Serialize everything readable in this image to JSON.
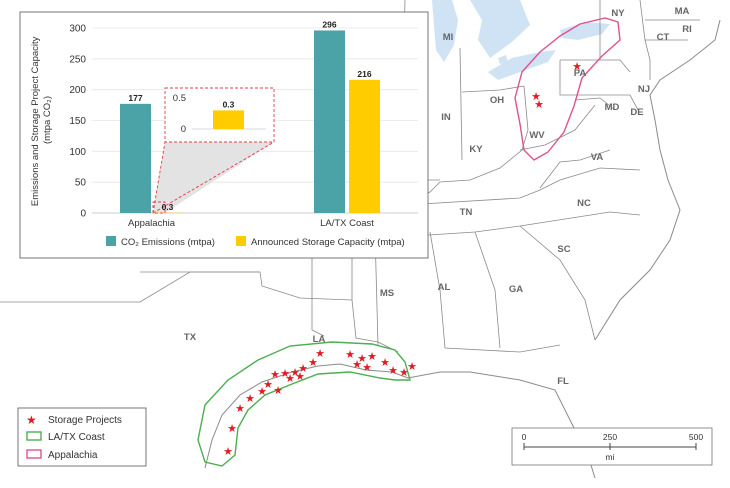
{
  "map": {
    "state_labels": [
      "NY",
      "MA",
      "CT",
      "RI",
      "MI",
      "PA",
      "NJ",
      "MD",
      "DE",
      "OH",
      "IN",
      "WV",
      "VA",
      "KY",
      "TN",
      "NC",
      "SC",
      "GA",
      "AL",
      "MS",
      "LA",
      "TX",
      "FL"
    ],
    "colors": {
      "water": "#cfe3f5",
      "border": "#8a8a8a",
      "la_tx_coast": "#4caf50",
      "appalachia": "#e0528f",
      "star": "#e21b23"
    }
  },
  "legend": {
    "items": [
      {
        "label": "Storage Projects",
        "symbol": "star-icon"
      },
      {
        "label": "LA/TX Coast",
        "symbol": "green-outline-box"
      },
      {
        "label": "Appalachia",
        "symbol": "pink-outline-box"
      }
    ]
  },
  "scale": {
    "ticks": [
      "0",
      "250",
      "500"
    ],
    "unit": "mi"
  },
  "chart_data": {
    "type": "bar",
    "categories": [
      "Appalachia",
      "LA/TX Coast"
    ],
    "series": [
      {
        "name": "CO₂ Emissions (mtpa)",
        "values": [
          177,
          296
        ],
        "color": "#4ba3a8"
      },
      {
        "name": "Announced Storage Capacity (mtpa)",
        "values": [
          0.3,
          216
        ],
        "color": "#ffcc00"
      }
    ],
    "ylabel": "Emissions and Storage Project Capacity (mtpa CO₂)",
    "ylim": [
      0,
      300
    ],
    "yticks": [
      0,
      50,
      100,
      150,
      200,
      250,
      300
    ],
    "value_labels": [
      "177",
      "0.3",
      "296",
      "216"
    ],
    "inset": {
      "yticks": [
        "0.5",
        "0"
      ],
      "ylim": [
        0,
        0.5
      ],
      "value": 0.3,
      "label": "0.3"
    },
    "grid": true,
    "legend_position": "bottom"
  }
}
